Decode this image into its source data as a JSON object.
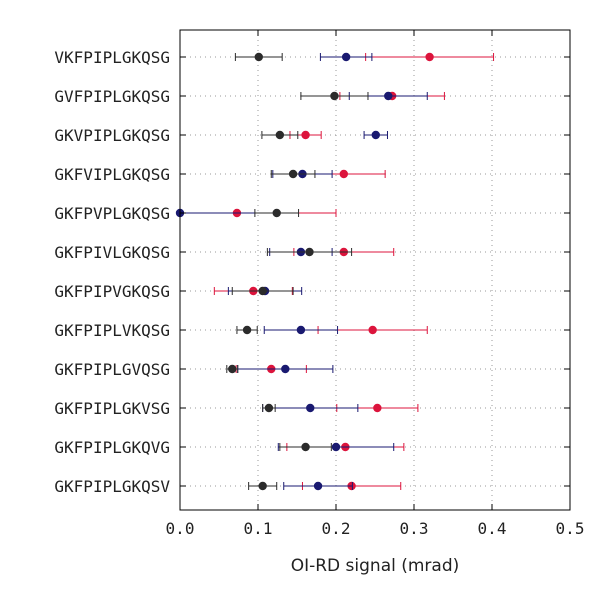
{
  "chart_data": {
    "type": "scatter",
    "title": "",
    "xlabel": "OI-RD signal (mrad)",
    "ylabel": "",
    "xlim": [
      0.0,
      0.5
    ],
    "xticks": [
      "0.0",
      "0.1",
      "0.2",
      "0.3",
      "0.4",
      "0.5"
    ],
    "xtick_values": [
      0.0,
      0.1,
      0.2,
      0.3,
      0.4,
      0.5
    ],
    "grid": "dotted",
    "legend": "none",
    "categories": [
      "VKFPIPLGKQSG",
      "GVFPIPLGKQSG",
      "GKVPIPLGKQSG",
      "GKFVIPLGKQSG",
      "GKFPVPLGKQSG",
      "GKFPIVLGKQSG",
      "GKFPIPVGKQSG",
      "GKFPIPLVKQSG",
      "GKFPIPLGVQSG",
      "GKFPIPLGKVSG",
      "GKFPIPLGKQVG",
      "GKFPIPLGKQSV"
    ],
    "series": [
      {
        "name": "red",
        "color": "#dc143c",
        "values": [
          0.32,
          0.272,
          0.161,
          0.21,
          0.073,
          0.21,
          0.094,
          0.247,
          0.117,
          0.253,
          0.212,
          0.22
        ],
        "errors": [
          0.082,
          0.067,
          0.02,
          0.053,
          0.127,
          0.064,
          0.05,
          0.07,
          0.045,
          0.052,
          0.075,
          0.063
        ]
      },
      {
        "name": "navy",
        "color": "#191970",
        "values": [
          0.213,
          0.267,
          0.251,
          0.157,
          0.0,
          0.155,
          0.109,
          0.155,
          0.135,
          0.167,
          0.2,
          0.177
        ],
        "errors": [
          0.033,
          0.05,
          0.015,
          0.038,
          0.123,
          0.04,
          0.047,
          0.047,
          0.061,
          0.061,
          0.074,
          0.044
        ]
      },
      {
        "name": "black",
        "color": "#2b2b2b",
        "values": [
          0.101,
          0.198,
          0.128,
          0.145,
          0.124,
          0.166,
          0.106,
          0.086,
          0.067,
          0.114,
          0.161,
          0.106
        ],
        "errors": [
          0.03,
          0.043,
          0.023,
          0.028,
          0.028,
          0.054,
          0.039,
          0.013,
          0.007,
          0.008,
          0.033,
          0.018
        ]
      }
    ]
  }
}
